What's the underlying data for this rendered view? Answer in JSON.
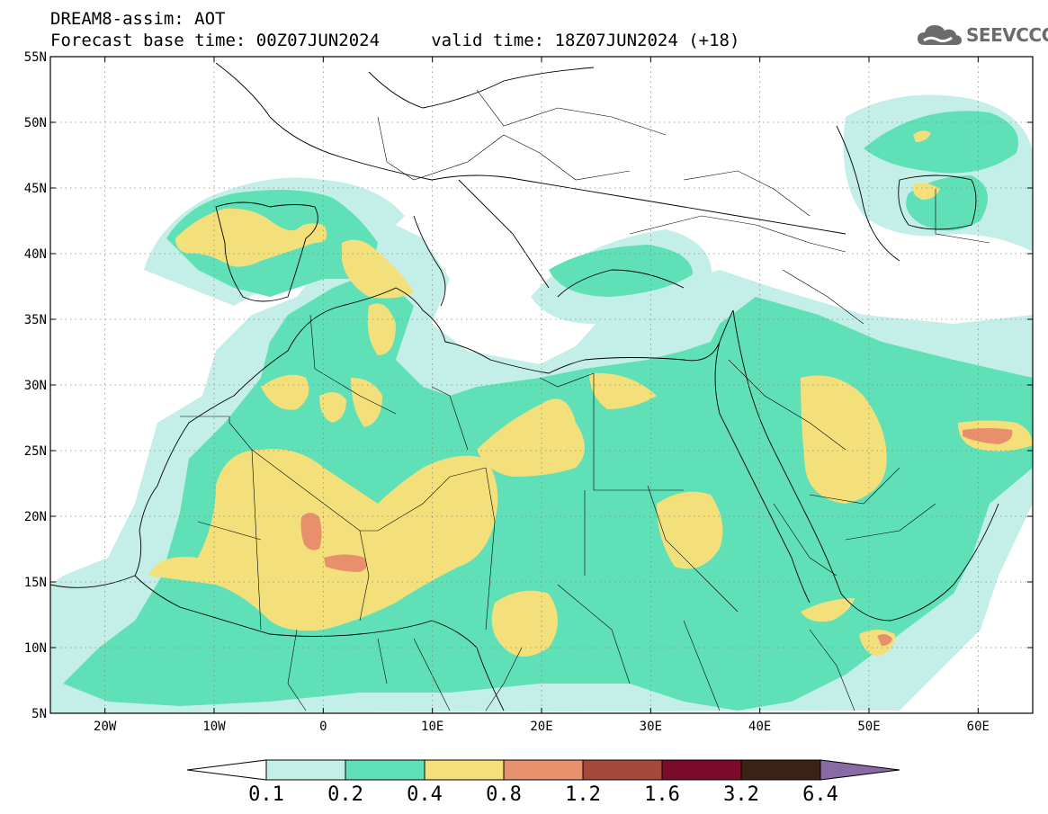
{
  "header": {
    "line1": "DREAM8-assim: AOT",
    "line2": "Forecast base time: 00Z07JUN2024     valid time: 18Z07JUN2024 (+18)"
  },
  "logo": {
    "text": "SEEVCCC",
    "icon": "cloud-icon",
    "color": "#6b6b6b"
  },
  "chart_data": {
    "type": "heatmap",
    "title": "DREAM8-assim: AOT",
    "subtitle": "Forecast base time: 00Z07JUN2024     valid time: 18Z07JUN2024 (+18)",
    "x_range": [
      -25,
      65
    ],
    "y_range": [
      5,
      55
    ],
    "x_ticks": [
      {
        "value": -20,
        "label": "20W"
      },
      {
        "value": -10,
        "label": "10W"
      },
      {
        "value": 0,
        "label": "0"
      },
      {
        "value": 10,
        "label": "10E"
      },
      {
        "value": 20,
        "label": "20E"
      },
      {
        "value": 30,
        "label": "30E"
      },
      {
        "value": 40,
        "label": "40E"
      },
      {
        "value": 50,
        "label": "50E"
      },
      {
        "value": 60,
        "label": "60E"
      }
    ],
    "y_ticks": [
      {
        "value": 5,
        "label": "5N"
      },
      {
        "value": 10,
        "label": "10N"
      },
      {
        "value": 15,
        "label": "15N"
      },
      {
        "value": 20,
        "label": "20N"
      },
      {
        "value": 25,
        "label": "25N"
      },
      {
        "value": 30,
        "label": "30N"
      },
      {
        "value": 35,
        "label": "35N"
      },
      {
        "value": 40,
        "label": "40N"
      },
      {
        "value": 45,
        "label": "45N"
      },
      {
        "value": 50,
        "label": "50N"
      },
      {
        "value": 55,
        "label": "55N"
      }
    ],
    "grid": true,
    "colorbar": {
      "levels": [
        "0.1",
        "0.2",
        "0.4",
        "0.8",
        "1.2",
        "1.6",
        "3.2",
        "6.4"
      ],
      "colors": [
        "#c4efe9",
        "#5fe0b7",
        "#f3e07a",
        "#e8906c",
        "#a5493a",
        "#7d0a2a",
        "#3b2314",
        "#8a6aa6"
      ]
    }
  }
}
